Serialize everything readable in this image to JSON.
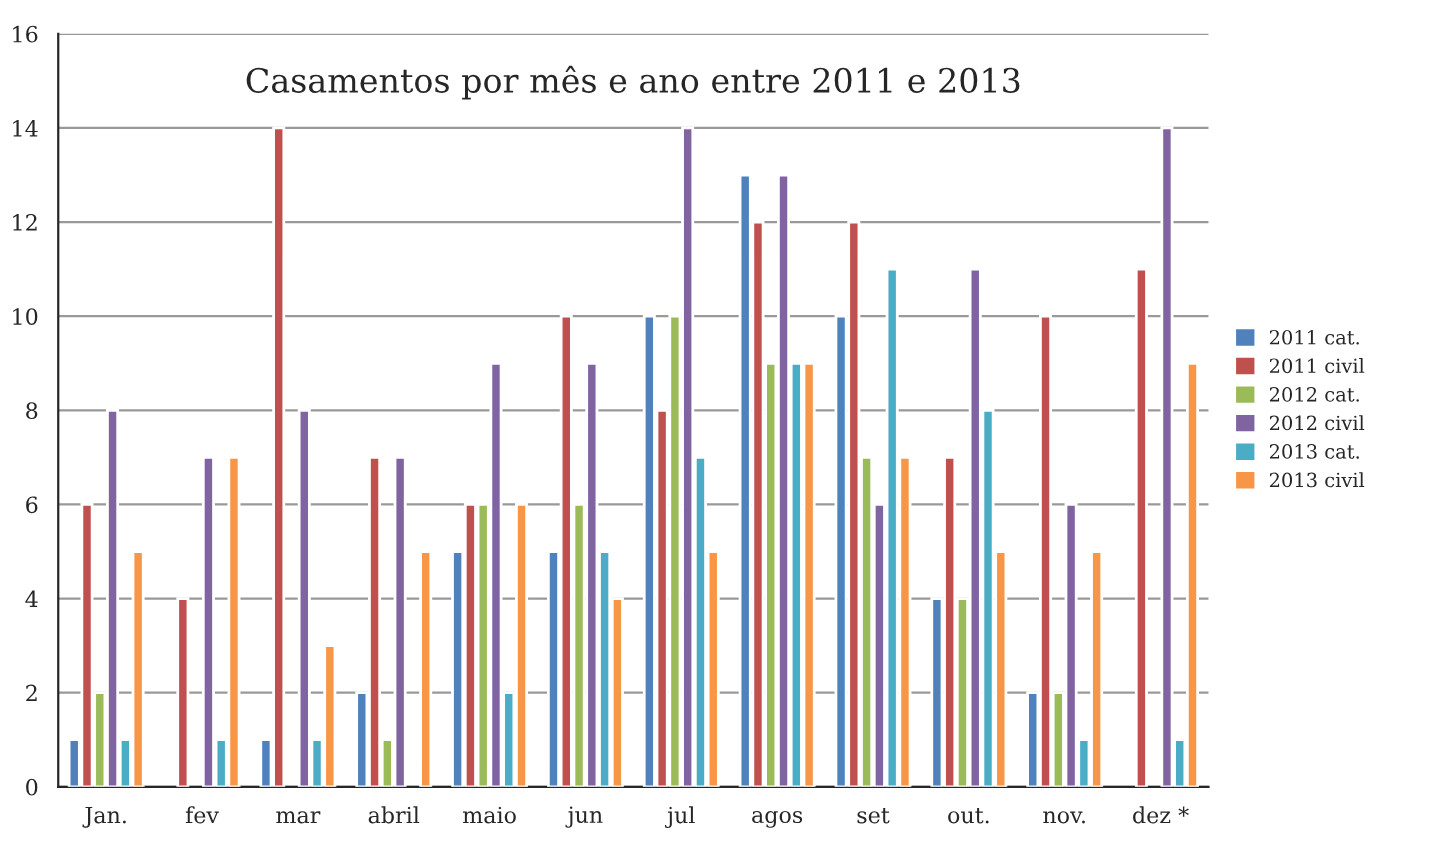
{
  "chart_data": {
    "type": "bar",
    "title": "Casamentos por mês e ano entre 2011 e 2013",
    "categories": [
      "Jan.",
      "fev",
      "mar",
      "abril",
      "maio",
      "jun",
      "jul",
      "agos",
      "set",
      "out.",
      "nov.",
      "dez *"
    ],
    "series": [
      {
        "name": "2011 cat.",
        "color": "#4f81bd",
        "values": [
          1,
          null,
          1,
          2,
          5,
          5,
          10,
          13,
          10,
          4,
          2,
          null
        ]
      },
      {
        "name": "2011 civil",
        "color": "#c0504d",
        "values": [
          6,
          4,
          14,
          7,
          6,
          10,
          8,
          12,
          12,
          7,
          10,
          11
        ]
      },
      {
        "name": "2012 cat.",
        "color": "#9bbb59",
        "values": [
          2,
          null,
          null,
          1,
          6,
          6,
          10,
          9,
          7,
          4,
          2,
          null
        ]
      },
      {
        "name": "2012 civil",
        "color": "#8064a2",
        "values": [
          8,
          7,
          8,
          7,
          9,
          9,
          14,
          13,
          6,
          11,
          6,
          14
        ]
      },
      {
        "name": "2013 cat.",
        "color": "#4bacc6",
        "values": [
          1,
          1,
          1,
          null,
          2,
          5,
          7,
          9,
          11,
          8,
          1,
          1
        ]
      },
      {
        "name": "2013 civil",
        "color": "#f79646",
        "values": [
          5,
          7,
          3,
          5,
          6,
          4,
          5,
          9,
          7,
          5,
          5,
          9
        ]
      }
    ],
    "ylim": [
      0,
      16
    ],
    "yticks": [
      0,
      2,
      4,
      6,
      8,
      10,
      12,
      14,
      16
    ],
    "grid": "y",
    "legend": "right"
  }
}
